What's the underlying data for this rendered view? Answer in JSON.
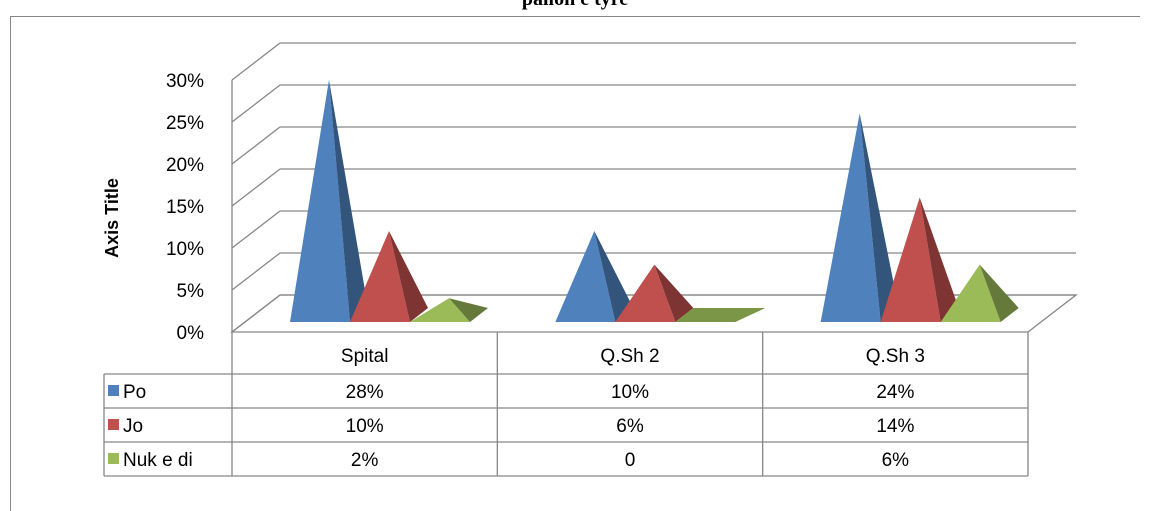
{
  "chart_data": {
    "type": "bar",
    "style": "3d-pyramid-with-data-table",
    "title": "pallon e tyre",
    "xlabel": "",
    "ylabel": "Axis Title",
    "ylim": [
      0,
      30
    ],
    "y_ticks": [
      "0%",
      "5%",
      "10%",
      "15%",
      "20%",
      "25%",
      "30%"
    ],
    "categories": [
      "Spital",
      "Q.Sh 2",
      "Q.Sh 3"
    ],
    "series": [
      {
        "name": "Po",
        "color": "#4f81bd",
        "values": [
          28,
          10,
          24
        ],
        "labels": [
          "28%",
          "10%",
          "24%"
        ]
      },
      {
        "name": "Jo",
        "color": "#c0504d",
        "values": [
          10,
          6,
          14
        ],
        "labels": [
          "10%",
          "6%",
          "14%"
        ]
      },
      {
        "name": "Nuk e di",
        "color": "#9bbb59",
        "values": [
          2,
          0,
          6
        ],
        "labels": [
          "2%",
          "0",
          "6%"
        ]
      }
    ],
    "grid": true,
    "legend": "data-table"
  }
}
